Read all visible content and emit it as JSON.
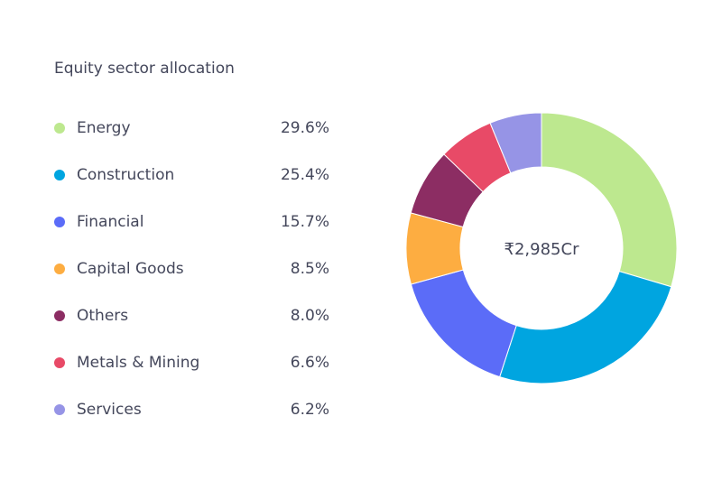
{
  "chart_data": {
    "type": "pie",
    "title": "Equity sector allocation",
    "center_label": "₹2,985Cr",
    "legend_position": "left",
    "categories": [
      "Energy",
      "Construction",
      "Financial",
      "Capital Goods",
      "Others",
      "Metals & Mining",
      "Services"
    ],
    "values": [
      29.6,
      25.4,
      15.7,
      8.5,
      8.0,
      6.6,
      6.2
    ],
    "value_labels": [
      "29.6%",
      "25.4%",
      "15.7%",
      "8.5%",
      "8.0%",
      "6.6%",
      "6.2%"
    ],
    "colors": [
      "#bde88f",
      "#00a5e0",
      "#5b6cf8",
      "#fdad41",
      "#8c2d63",
      "#e84a67",
      "#9694e6"
    ]
  }
}
